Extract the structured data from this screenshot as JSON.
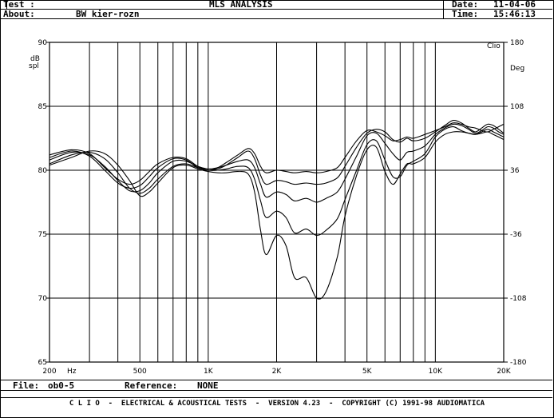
{
  "header": {
    "test_label": "Test :",
    "about_label": "About:",
    "about_value": "BW kier-rozn",
    "title": "MLS ANALYSIS",
    "date_label": "Date:",
    "date_value": "11-04-06",
    "time_label": "Time:",
    "time_value": "15:46:13"
  },
  "footer": {
    "file_label": "File:",
    "file_value": "ob0-5",
    "reference_label": "Reference:",
    "reference_value": "NONE",
    "banner": "C L I O  -  ELECTRICAL & ACOUSTICAL TESTS  -  VERSION 4.23  -  COPYRIGHT (C) 1991-98 AUDIOMATICA"
  },
  "chart_data": {
    "type": "line",
    "title": "MLS ANALYSIS",
    "xscale": "log",
    "xlim": [
      200,
      20000
    ],
    "ylim": [
      65,
      90
    ],
    "y2lim": [
      -180,
      180
    ],
    "grid": true,
    "xlabel": "Hz",
    "ylabel": "dB spl",
    "y2label": "Deg",
    "corner_label": "Clio",
    "x_ticks": [
      {
        "value": 200,
        "label": "200"
      },
      {
        "value": 500,
        "label": "500"
      },
      {
        "value": 1000,
        "label": "1K"
      },
      {
        "value": 2000,
        "label": "2K"
      },
      {
        "value": 5000,
        "label": "5K"
      },
      {
        "value": 10000,
        "label": "10K"
      },
      {
        "value": 20000,
        "label": "20K"
      }
    ],
    "y_ticks": [
      {
        "value": 90,
        "label": "90"
      },
      {
        "value": 85,
        "label": "85"
      },
      {
        "value": 80,
        "label": "80"
      },
      {
        "value": 75,
        "label": "75"
      },
      {
        "value": 70,
        "label": "70"
      },
      {
        "value": 65,
        "label": "65"
      }
    ],
    "y2_ticks": [
      {
        "value": 180,
        "label": "180"
      },
      {
        "value": 108,
        "label": "108"
      },
      {
        "value": 36,
        "label": "36"
      },
      {
        "value": -36,
        "label": "-36"
      },
      {
        "value": -108,
        "label": "-108"
      },
      {
        "value": -180,
        "label": "-180"
      }
    ],
    "x": [
      200,
      250,
      300,
      350,
      400,
      450,
      500,
      550,
      600,
      700,
      800,
      900,
      1000,
      1100,
      1200,
      1350,
      1500,
      1600,
      1700,
      1800,
      2000,
      2200,
      2400,
      2700,
      3000,
      3300,
      3700,
      4000,
      4500,
      5000,
      5500,
      6000,
      6500,
      7000,
      7500,
      8000,
      9000,
      10000,
      11000,
      12000,
      13000,
      14000,
      15000,
      16000,
      17000,
      18000,
      19000,
      20000
    ],
    "series": [
      {
        "values": [
          81.2,
          81.6,
          81.3,
          80.2,
          79.3,
          78.9,
          79.2,
          79.9,
          80.5,
          81.0,
          80.9,
          80.3,
          80.0,
          80.2,
          80.6,
          81.2,
          81.7,
          81.3,
          80.3,
          79.8,
          80.0,
          79.9,
          79.8,
          79.9,
          79.8,
          79.9,
          80.2,
          81.0,
          82.3,
          83.1,
          83.0,
          82.7,
          82.3,
          82.4,
          82.6,
          82.5,
          82.8,
          83.1,
          83.4,
          83.7,
          83.6,
          83.4,
          83.3,
          83.1,
          83.0,
          83.2,
          83.4,
          83.6
        ]
      },
      {
        "values": [
          81.0,
          81.5,
          81.1,
          80.0,
          79.0,
          78.6,
          78.8,
          79.5,
          80.2,
          80.9,
          80.8,
          80.2,
          80.0,
          80.1,
          80.4,
          81.0,
          81.5,
          80.9,
          79.6,
          78.9,
          79.2,
          79.1,
          78.9,
          79.0,
          78.9,
          79.0,
          79.4,
          80.3,
          81.8,
          82.9,
          83.2,
          83.0,
          82.4,
          82.2,
          82.5,
          82.3,
          82.5,
          83.0,
          83.5,
          83.9,
          83.7,
          83.3,
          83.0,
          83.3,
          83.6,
          83.5,
          83.2,
          82.9
        ]
      },
      {
        "values": [
          80.8,
          81.4,
          81.2,
          80.3,
          79.2,
          78.4,
          78.4,
          79.0,
          79.8,
          80.7,
          80.7,
          80.3,
          80.1,
          80.2,
          80.4,
          80.7,
          80.8,
          80.2,
          78.9,
          77.9,
          78.3,
          78.1,
          77.6,
          77.8,
          77.5,
          77.8,
          78.3,
          79.3,
          81.1,
          82.7,
          82.9,
          82.1,
          81.3,
          80.8,
          81.4,
          81.5,
          81.9,
          82.8,
          83.3,
          83.6,
          83.5,
          83.2,
          82.9,
          83.1,
          83.4,
          83.3,
          83.0,
          82.8
        ]
      },
      {
        "values": [
          80.5,
          81.2,
          81.4,
          80.9,
          79.8,
          78.6,
          78.2,
          78.6,
          79.3,
          80.3,
          80.5,
          80.2,
          80.0,
          80.0,
          80.1,
          80.3,
          80.2,
          79.3,
          77.6,
          76.3,
          76.8,
          76.3,
          75.1,
          75.4,
          74.9,
          75.3,
          76.2,
          77.7,
          80.0,
          82.0,
          82.3,
          80.8,
          79.5,
          79.5,
          80.4,
          80.7,
          81.3,
          82.6,
          83.2,
          83.4,
          83.1,
          82.9,
          82.8,
          83.0,
          83.2,
          83.0,
          82.8,
          82.6
        ]
      },
      {
        "values": [
          80.4,
          81.0,
          81.5,
          81.3,
          80.4,
          79.2,
          78.0,
          78.3,
          79.0,
          80.2,
          80.4,
          80.1,
          79.9,
          79.8,
          79.8,
          79.9,
          79.7,
          78.3,
          75.3,
          73.4,
          74.9,
          74.1,
          71.6,
          71.6,
          70.0,
          70.5,
          73.2,
          76.4,
          79.6,
          81.6,
          81.8,
          79.9,
          78.9,
          79.7,
          80.5,
          80.5,
          81.0,
          82.2,
          82.8,
          83.0,
          83.0,
          82.9,
          82.8,
          82.9,
          83.0,
          82.8,
          82.6,
          82.4
        ]
      }
    ]
  }
}
